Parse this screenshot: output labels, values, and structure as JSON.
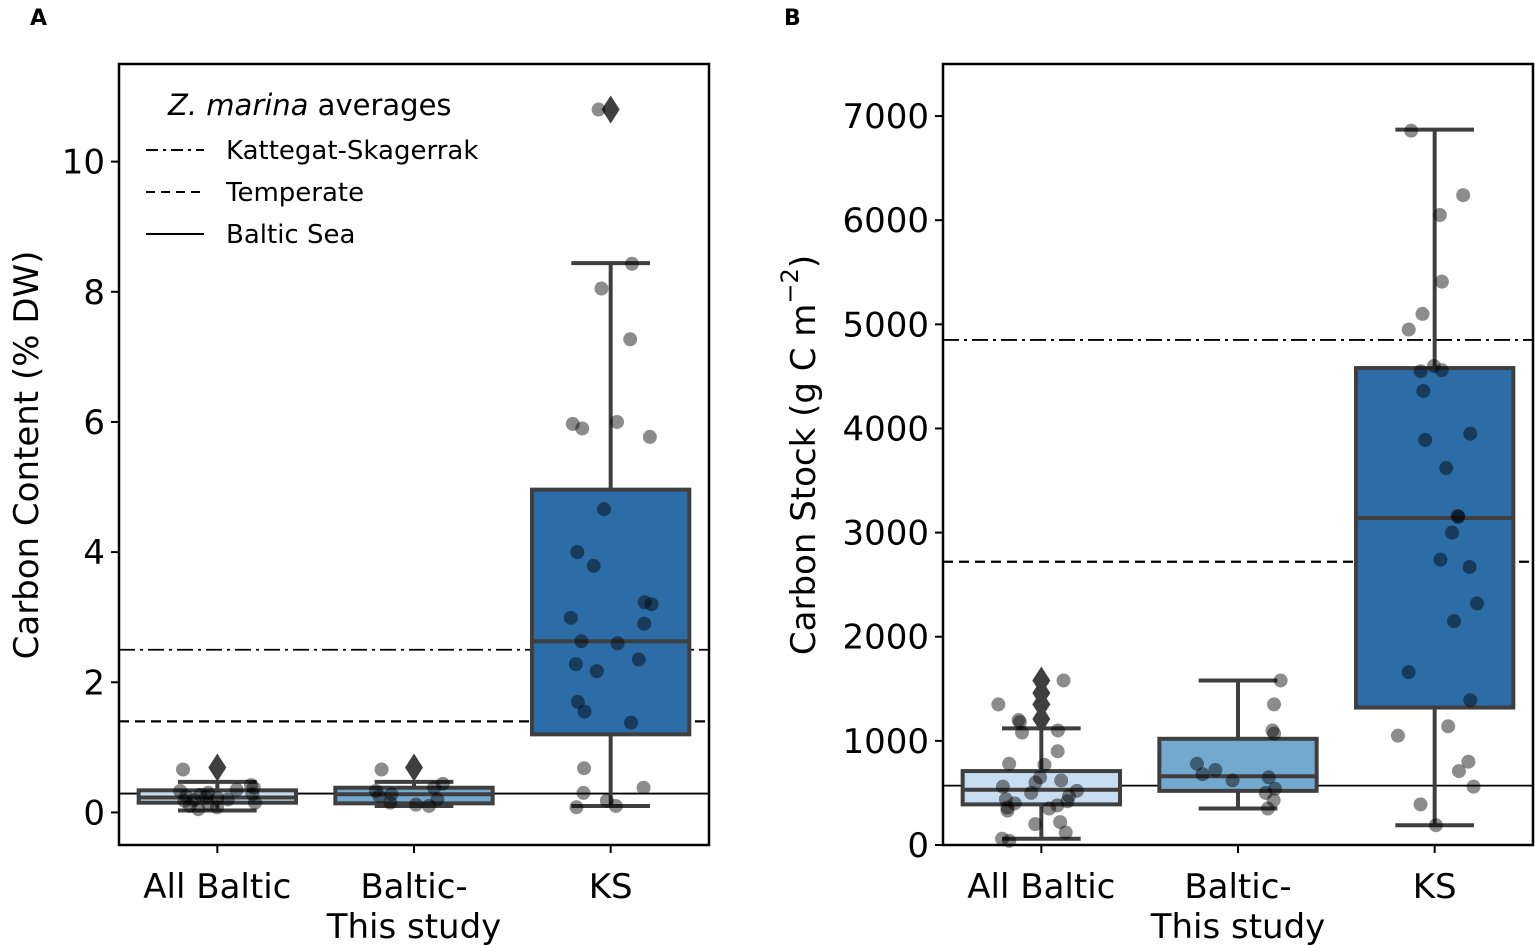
{
  "colors": {
    "frame": "#000000",
    "box_edge": "#3f3f3f",
    "point": "#000000",
    "all_baltic_fill": "#c8ddf0",
    "baltic_study_fill": "#73a9cf",
    "ks_fill": "#2c6ca7"
  },
  "chart_data": [
    {
      "panel_label": "A",
      "type": "box",
      "ylabel": "Carbon Content (% DW)",
      "ylim": [
        -0.5,
        11.5
      ],
      "yticks": [
        0,
        2,
        4,
        6,
        8,
        10
      ],
      "categories": [
        "All Baltic",
        "Baltic-\nThis study",
        "KS"
      ],
      "category_lines": [
        [
          "All Baltic"
        ],
        [
          "Baltic-",
          "This study"
        ],
        [
          "KS"
        ]
      ],
      "legend": {
        "title_italic": "Z. marina",
        "title_rest": " averages",
        "entries": [
          {
            "label": "Kattegat-Skagerrak",
            "style": "dashdot"
          },
          {
            "label": "Temperate",
            "style": "dashed"
          },
          {
            "label": "Baltic Sea",
            "style": "solid"
          }
        ],
        "placement": "top-left"
      },
      "reference_lines": [
        {
          "name": "Kattegat-Skagerrak",
          "value": 2.5,
          "style": "dashdot"
        },
        {
          "name": "Temperate",
          "value": 1.4,
          "style": "dashed"
        },
        {
          "name": "Baltic Sea",
          "value": 0.29,
          "style": "solid"
        }
      ],
      "boxes": [
        {
          "category": "All Baltic",
          "q1": 0.15,
          "median": 0.23,
          "q3": 0.34,
          "whisker_low": 0.03,
          "whisker_high": 0.47,
          "outliers": [
            0.69
          ],
          "points": [
            0.42,
            0.38,
            0.33,
            0.3,
            0.28,
            0.25,
            0.24,
            0.22,
            0.2,
            0.19,
            0.18,
            0.15,
            0.13,
            0.1,
            0.08,
            0.05,
            0.66,
            0.35,
            0.27
          ]
        },
        {
          "category": "Baltic-\nThis study",
          "q1": 0.14,
          "median": 0.28,
          "q3": 0.38,
          "whisker_low": 0.1,
          "whisker_high": 0.47,
          "outliers": [
            0.69
          ],
          "points": [
            0.66,
            0.44,
            0.38,
            0.33,
            0.28,
            0.25,
            0.2,
            0.15,
            0.12,
            0.1
          ]
        },
        {
          "category": "KS",
          "q1": 1.2,
          "median": 2.63,
          "q3": 4.96,
          "whisker_low": 0.1,
          "whisker_high": 8.44,
          "outliers": [
            10.8
          ],
          "points": [
            10.8,
            8.43,
            8.05,
            7.27,
            6.0,
            5.97,
            5.9,
            5.77,
            4.66,
            4.0,
            3.79,
            3.23,
            3.2,
            2.99,
            2.9,
            2.63,
            2.6,
            2.35,
            2.28,
            2.17,
            1.7,
            1.55,
            1.38,
            0.68,
            0.38,
            0.3,
            0.18,
            0.1,
            0.08
          ]
        }
      ]
    },
    {
      "panel_label": "B",
      "type": "box",
      "ylabel": "Carbon Stock (g C m",
      "ylabel_sup": "−2",
      "ylabel_close": ")",
      "ylim": [
        0,
        7500
      ],
      "yticks": [
        0,
        1000,
        2000,
        3000,
        4000,
        5000,
        6000,
        7000
      ],
      "categories": [
        "All Baltic",
        "Baltic-\nThis study",
        "KS"
      ],
      "category_lines": [
        [
          "All Baltic"
        ],
        [
          "Baltic-",
          "This study"
        ],
        [
          "KS"
        ]
      ],
      "reference_lines": [
        {
          "name": "Kattegat-Skagerrak",
          "value": 4850,
          "style": "dashdot"
        },
        {
          "name": "Temperate",
          "value": 2720,
          "style": "dashed"
        },
        {
          "name": "Baltic Sea",
          "value": 570,
          "style": "solid"
        }
      ],
      "boxes": [
        {
          "category": "All Baltic",
          "q1": 390,
          "median": 530,
          "q3": 710,
          "whisker_low": 60,
          "whisker_high": 1120,
          "outliers": [
            1210,
            1350,
            1460,
            1580
          ],
          "points": [
            1580,
            1350,
            1200,
            1180,
            1100,
            1080,
            900,
            780,
            770,
            650,
            620,
            600,
            560,
            520,
            500,
            470,
            440,
            420,
            400,
            380,
            360,
            350,
            330,
            220,
            200,
            120,
            60,
            40
          ]
        },
        {
          "category": "Baltic-\nThis study",
          "q1": 520,
          "median": 660,
          "q3": 1020,
          "whisker_low": 350,
          "whisker_high": 1580,
          "outliers": [],
          "points": [
            1580,
            1350,
            1100,
            1070,
            780,
            720,
            680,
            650,
            620,
            540,
            500,
            430,
            350
          ]
        },
        {
          "category": "KS",
          "q1": 1320,
          "median": 3140,
          "q3": 4580,
          "whisker_low": 190,
          "whisker_high": 6870,
          "outliers": [],
          "points": [
            6860,
            6240,
            6050,
            5410,
            5100,
            4950,
            4600,
            4560,
            4550,
            4360,
            3950,
            3890,
            3620,
            3160,
            3150,
            3000,
            2740,
            2670,
            2320,
            2150,
            1660,
            1390,
            1140,
            1050,
            800,
            710,
            560,
            390,
            190
          ]
        }
      ]
    }
  ]
}
